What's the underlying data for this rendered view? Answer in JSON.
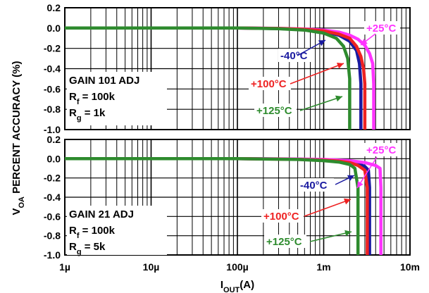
{
  "chart_data": [
    {
      "type": "line",
      "panel": "top",
      "x_scale": "log",
      "xlim": [
        1e-06,
        0.01
      ],
      "ylim": [
        -1.0,
        0.2
      ],
      "y_ticks": [
        "0.2",
        "0.0",
        "-0.2",
        "-0.4",
        "-0.6",
        "-0.8",
        "-1.0"
      ],
      "annotation": [
        "GAIN 101 ADJ",
        "R",
        "f",
        " = 100k",
        "R",
        "g",
        " = 1k"
      ],
      "series": [
        {
          "name": "-40°C",
          "color": "#1a1aa0",
          "x": [
            1e-06,
            0.0001,
            0.0003,
            0.0006,
            0.001,
            0.0015,
            0.002,
            0.0024,
            0.0026,
            0.0027,
            0.0027
          ],
          "y": [
            0.0,
            0.0,
            -0.005,
            -0.015,
            -0.035,
            -0.07,
            -0.13,
            -0.22,
            -0.35,
            -0.55,
            -1.0
          ]
        },
        {
          "name": "+25°C",
          "color": "#ff33ff",
          "x": [
            1e-06,
            0.0001,
            0.0003,
            0.0006,
            0.001,
            0.0015,
            0.002,
            0.0025,
            0.003,
            0.0034,
            0.0037,
            0.0038,
            0.0038
          ],
          "y": [
            0.0,
            0.0,
            -0.003,
            -0.01,
            -0.02,
            -0.04,
            -0.07,
            -0.11,
            -0.17,
            -0.25,
            -0.35,
            -0.55,
            -1.0
          ]
        },
        {
          "name": "+100°C",
          "color": "#ee2222",
          "x": [
            1e-06,
            0.0001,
            0.0003,
            0.0006,
            0.001,
            0.0015,
            0.002,
            0.0024,
            0.0027,
            0.0029,
            0.003,
            0.003
          ],
          "y": [
            0.0,
            0.0,
            -0.004,
            -0.012,
            -0.028,
            -0.06,
            -0.1,
            -0.18,
            -0.28,
            -0.4,
            -0.55,
            -1.0
          ]
        },
        {
          "name": "+125°C",
          "color": "#2e8b2e",
          "x": [
            1e-06,
            0.0001,
            0.0003,
            0.0006,
            0.001,
            0.0014,
            0.0017,
            0.0019,
            0.002,
            0.002
          ],
          "y": [
            0.0,
            0.0,
            -0.006,
            -0.02,
            -0.05,
            -0.1,
            -0.18,
            -0.3,
            -0.5,
            -1.0
          ]
        }
      ],
      "callouts": [
        {
          "series": "-40°C",
          "label": "-40°C",
          "color": "#1a1aa0"
        },
        {
          "series": "+25°C",
          "label": "+25°C",
          "color": "#ff33ff"
        },
        {
          "series": "+100°C",
          "label": "+100°C",
          "color": "#ee2222"
        },
        {
          "series": "+125°C",
          "label": "+125°C",
          "color": "#2e8b2e"
        }
      ]
    },
    {
      "type": "line",
      "panel": "bottom",
      "x_scale": "log",
      "xlim": [
        1e-06,
        0.01
      ],
      "ylim": [
        -1.0,
        0.2
      ],
      "y_ticks": [
        "0.2",
        "0.0",
        "-0.2",
        "-0.4",
        "-0.6",
        "-0.8",
        "-1.0"
      ],
      "x_ticks": [
        "1µ",
        "10µ",
        "100µ",
        "1m",
        "10m"
      ],
      "xlabel": "I",
      "xlabel_sub": "OUT",
      "xlabel_suffix": "(A)",
      "annotation": [
        "GAIN 21 ADJ",
        "R",
        "f",
        " = 100k",
        "R",
        "g",
        " = 5k"
      ],
      "series": [
        {
          "name": "-40°C",
          "color": "#1a1aa0",
          "x": [
            1e-06,
            0.0001,
            0.0005,
            0.001,
            0.0015,
            0.002,
            0.0025,
            0.003,
            0.0033,
            0.0034,
            0.0034
          ],
          "y": [
            0.0,
            0.0,
            -0.005,
            -0.012,
            -0.02,
            -0.035,
            -0.05,
            -0.08,
            -0.12,
            -0.3,
            -1.0
          ]
        },
        {
          "name": "+25°C",
          "color": "#ff33ff",
          "x": [
            1e-06,
            0.0001,
            0.0005,
            0.001,
            0.002,
            0.003,
            0.004,
            0.0045,
            0.0046,
            0.0046
          ],
          "y": [
            0.0,
            0.0,
            -0.003,
            -0.008,
            -0.02,
            -0.04,
            -0.07,
            -0.1,
            -0.3,
            -1.0
          ]
        },
        {
          "name": "+100°C",
          "color": "#ee2222",
          "x": [
            1e-06,
            0.0001,
            0.0005,
            0.001,
            0.0015,
            0.002,
            0.0025,
            0.003,
            0.0032,
            0.0032
          ],
          "y": [
            0.0,
            0.0,
            -0.006,
            -0.015,
            -0.025,
            -0.04,
            -0.07,
            -0.12,
            -0.3,
            -1.0
          ]
        },
        {
          "name": "+125°C",
          "color": "#2e8b2e",
          "x": [
            1e-06,
            0.0001,
            0.0005,
            0.001,
            0.0015,
            0.002,
            0.0023,
            0.0025,
            0.0025
          ],
          "y": [
            0.0,
            0.0,
            -0.008,
            -0.02,
            -0.035,
            -0.06,
            -0.1,
            -0.3,
            -1.0
          ]
        }
      ],
      "callouts": [
        {
          "series": "-40°C",
          "label": "-40°C",
          "color": "#1a1aa0"
        },
        {
          "series": "+25°C",
          "label": "+25°C",
          "color": "#ff33ff"
        },
        {
          "series": "+100°C",
          "label": "+100°C",
          "color": "#ee2222"
        },
        {
          "series": "+125°C",
          "label": "+125°C",
          "color": "#2e8b2e"
        }
      ]
    }
  ],
  "ylabel": {
    "v": "V",
    "v_sub": "OA",
    "rest": " PERCENT ACCURACY (%)"
  }
}
